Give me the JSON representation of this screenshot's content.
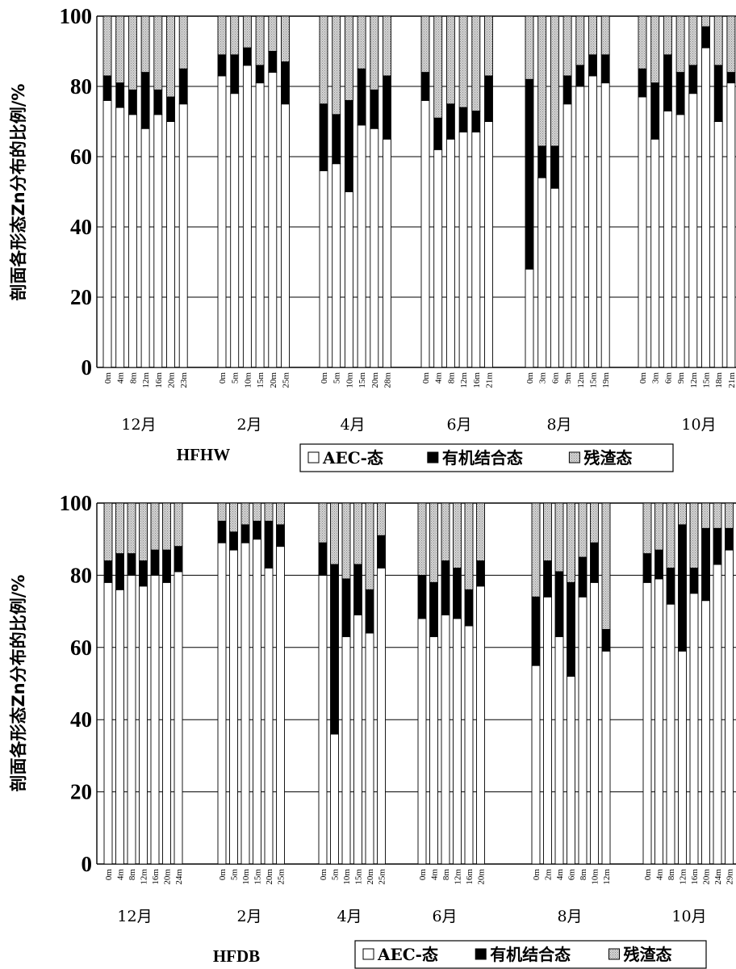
{
  "legend": {
    "aec": "AEC-态",
    "organic": "有机结合态",
    "residual": "残渣态"
  },
  "colors": {
    "aec": "#ffffff",
    "organic": "#000000",
    "residual": "#d4d4d4",
    "grid": "#000000"
  },
  "chart_data": [
    {
      "type": "bar",
      "stacked": true,
      "site": "HFHW",
      "ylabel": "剖面各形态Zn分布的比例/%",
      "ylim": [
        0,
        100
      ],
      "yticks": [
        0,
        20,
        40,
        60,
        80,
        100
      ],
      "grid": true,
      "legend_position": "bottom-right",
      "groups": [
        {
          "month": "12月",
          "depths": [
            "0m",
            "4m",
            "8m",
            "12m",
            "16m",
            "20m",
            "23m"
          ],
          "aec": [
            76,
            74,
            72,
            68,
            72,
            70,
            75
          ],
          "organic": [
            7,
            7,
            7,
            16,
            7,
            7,
            10
          ]
        },
        {
          "month": "2月",
          "depths": [
            "0m",
            "5m",
            "10m",
            "15m",
            "20m",
            "25m"
          ],
          "aec": [
            83,
            78,
            86,
            81,
            84,
            75
          ],
          "organic": [
            6,
            11,
            5,
            5,
            6,
            12
          ]
        },
        {
          "month": "4月",
          "depths": [
            "0m",
            "5m",
            "10m",
            "15m",
            "20m",
            "28m"
          ],
          "aec": [
            56,
            58,
            50,
            69,
            68,
            65
          ],
          "organic": [
            19,
            14,
            26,
            16,
            11,
            18
          ]
        },
        {
          "month": "6月",
          "depths": [
            "0m",
            "4m",
            "8m",
            "12m",
            "16m",
            "21m"
          ],
          "aec": [
            76,
            62,
            65,
            67,
            67,
            70
          ],
          "organic": [
            8,
            9,
            10,
            7,
            6,
            13
          ]
        },
        {
          "month": "8月",
          "depths": [
            "0m",
            "3m",
            "6m",
            "9m",
            "12m",
            "15m",
            "19m"
          ],
          "aec": [
            28,
            54,
            51,
            75,
            80,
            83,
            81
          ],
          "organic": [
            54,
            9,
            12,
            8,
            6,
            6,
            8
          ]
        },
        {
          "month": "10月",
          "depths": [
            "0m",
            "3m",
            "6m",
            "9m",
            "12m",
            "15m",
            "18m",
            "21m"
          ],
          "aec": [
            77,
            65,
            73,
            72,
            78,
            91,
            70,
            81
          ],
          "organic": [
            8,
            16,
            16,
            12,
            8,
            6,
            16,
            3
          ]
        }
      ]
    },
    {
      "type": "bar",
      "stacked": true,
      "site": "HFDB",
      "ylabel": "剖面各形态Zn分布的比例/%",
      "ylim": [
        0,
        100
      ],
      "yticks": [
        0,
        20,
        40,
        60,
        80,
        100
      ],
      "grid": true,
      "legend_position": "bottom-right",
      "groups": [
        {
          "month": "12月",
          "depths": [
            "0m",
            "4m",
            "8m",
            "12m",
            "16m",
            "20m",
            "24m"
          ],
          "aec": [
            78,
            76,
            80,
            77,
            80,
            78,
            81
          ],
          "organic": [
            6,
            10,
            6,
            7,
            7,
            9,
            7
          ]
        },
        {
          "month": "2月",
          "depths": [
            "0m",
            "5m",
            "10m",
            "15m",
            "20m",
            "25m"
          ],
          "aec": [
            89,
            87,
            89,
            90,
            82,
            88
          ],
          "organic": [
            6,
            5,
            5,
            5,
            13,
            6
          ]
        },
        {
          "month": "4月",
          "depths": [
            "0m",
            "5m",
            "10m",
            "15m",
            "20m",
            "25m"
          ],
          "aec": [
            80,
            36,
            63,
            69,
            64,
            82
          ],
          "organic": [
            9,
            47,
            16,
            14,
            12,
            9
          ]
        },
        {
          "month": "6月",
          "depths": [
            "0m",
            "4m",
            "8m",
            "12m",
            "16m",
            "20m"
          ],
          "aec": [
            68,
            63,
            69,
            68,
            66,
            77
          ],
          "organic": [
            12,
            15,
            15,
            14,
            10,
            7
          ]
        },
        {
          "month": "8月",
          "depths": [
            "0m",
            "2m",
            "4m",
            "6m",
            "8m",
            "10m",
            "12m"
          ],
          "aec": [
            55,
            74,
            63,
            52,
            74,
            78,
            59
          ],
          "organic": [
            19,
            10,
            18,
            26,
            11,
            11,
            6
          ]
        },
        {
          "month": "10月",
          "depths": [
            "0m",
            "4m",
            "8m",
            "12m",
            "16m",
            "20m",
            "24m",
            "29m"
          ],
          "aec": [
            78,
            79,
            72,
            59,
            75,
            73,
            83,
            87
          ],
          "organic": [
            8,
            8,
            10,
            35,
            7,
            20,
            10,
            6
          ]
        }
      ]
    }
  ]
}
